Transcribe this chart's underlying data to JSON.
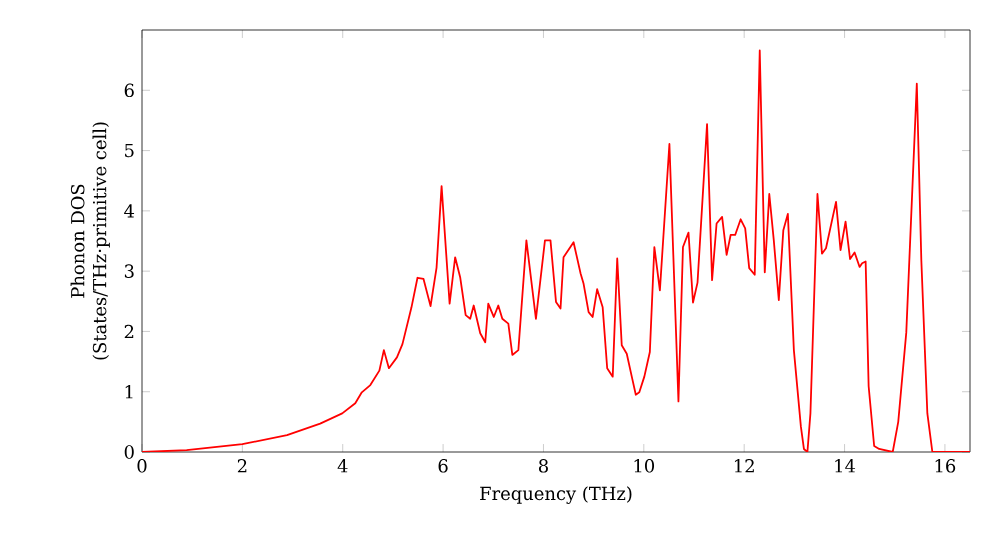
{
  "chart_data": {
    "type": "line",
    "xlabel": "Frequency (THz)",
    "ylabel": "Phonon DOS\n(States/THz·primitive cell)",
    "xlim": [
      0,
      16.5
    ],
    "ylim": [
      0,
      7
    ],
    "xticks": [
      0,
      2,
      4,
      6,
      8,
      10,
      12,
      14,
      16
    ],
    "yticks": [
      0,
      1,
      2,
      3,
      4,
      5,
      6
    ],
    "marker": "none",
    "line_style": "solid",
    "series": [
      {
        "color": "#ff0000",
        "x": [
          0,
          0.89,
          2.0,
          2.89,
          3.55,
          3.99,
          4.25,
          4.38,
          4.55,
          4.73,
          4.82,
          4.92,
          5.08,
          5.19,
          5.37,
          5.49,
          5.61,
          5.75,
          5.87,
          5.97,
          6.13,
          6.24,
          6.34,
          6.45,
          6.54,
          6.61,
          6.74,
          6.84,
          6.9,
          7.01,
          7.1,
          7.18,
          7.3,
          7.38,
          7.5,
          7.66,
          7.85,
          8.03,
          8.14,
          8.25,
          8.34,
          8.4,
          8.6,
          8.74,
          8.8,
          8.9,
          8.98,
          9.07,
          9.18,
          9.27,
          9.38,
          9.47,
          9.56,
          9.66,
          9.76,
          9.84,
          9.91,
          10.01,
          10.12,
          10.21,
          10.32,
          10.51,
          10.69,
          10.78,
          10.89,
          10.98,
          11.07,
          11.26,
          11.36,
          11.45,
          11.56,
          11.65,
          11.73,
          11.82,
          11.93,
          12.02,
          12.1,
          12.21,
          12.31,
          12.41,
          12.5,
          12.59,
          12.69,
          12.78,
          12.87,
          12.99,
          13.13,
          13.19,
          13.26,
          13.32,
          13.46,
          13.55,
          13.63,
          13.83,
          13.92,
          14.02,
          14.11,
          14.2,
          14.3,
          14.35,
          14.42,
          14.48,
          14.59,
          14.69,
          14.96,
          15.07,
          15.23,
          15.33,
          15.44,
          15.53,
          15.65,
          15.75,
          16.5
        ],
        "values": [
          0,
          0.03,
          0.13,
          0.28,
          0.47,
          0.64,
          0.81,
          0.99,
          1.11,
          1.35,
          1.69,
          1.39,
          1.57,
          1.79,
          2.4,
          2.89,
          2.87,
          2.42,
          3.06,
          4.41,
          2.46,
          3.23,
          2.9,
          2.27,
          2.21,
          2.43,
          1.97,
          1.82,
          2.46,
          2.24,
          2.43,
          2.21,
          2.13,
          1.61,
          1.69,
          3.51,
          2.21,
          3.51,
          3.51,
          2.49,
          2.38,
          3.23,
          3.48,
          2.96,
          2.79,
          2.32,
          2.24,
          2.7,
          2.4,
          1.39,
          1.25,
          3.21,
          1.77,
          1.63,
          1.25,
          0.95,
          0.99,
          1.25,
          1.66,
          3.4,
          2.68,
          5.11,
          0.84,
          3.4,
          3.64,
          2.48,
          2.81,
          5.44,
          2.85,
          3.79,
          3.9,
          3.27,
          3.6,
          3.6,
          3.86,
          3.71,
          3.05,
          2.94,
          6.66,
          2.98,
          4.28,
          3.51,
          2.52,
          3.68,
          3.95,
          1.69,
          0.42,
          0.05,
          0,
          0.64,
          4.28,
          3.29,
          3.38,
          4.15,
          3.35,
          3.82,
          3.2,
          3.31,
          3.07,
          3.13,
          3.16,
          1.09,
          0.1,
          0.05,
          0,
          0.5,
          1.98,
          3.95,
          6.11,
          3.18,
          0.64,
          0,
          0
        ]
      }
    ]
  }
}
